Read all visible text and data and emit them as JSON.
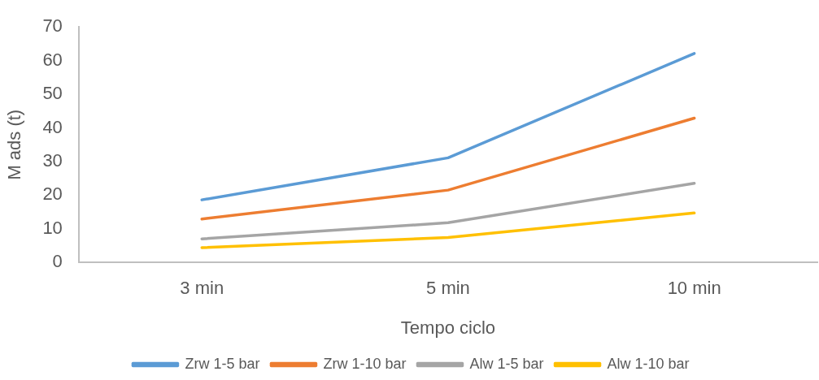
{
  "chart_data": {
    "type": "line",
    "xlabel": "Tempo ciclo",
    "ylabel": "M ads (t)",
    "categories": [
      "3 min",
      "5 min",
      "10 min"
    ],
    "series": [
      {
        "name": "Zrw 1-5 bar",
        "color": "#5b9bd5",
        "values": [
          18.6,
          31.1,
          62.1
        ]
      },
      {
        "name": "Zrw 1-10 bar",
        "color": "#ed7d31",
        "values": [
          12.9,
          21.5,
          42.9
        ]
      },
      {
        "name": "Alw 1-5 bar",
        "color": "#a5a5a5",
        "values": [
          7.0,
          11.8,
          23.5
        ]
      },
      {
        "name": "Alw 1-10 bar",
        "color": "#ffc000",
        "values": [
          4.4,
          7.4,
          14.7
        ]
      }
    ],
    "ylim": [
      0,
      70
    ],
    "yticks": [
      0,
      10,
      20,
      30,
      40,
      50,
      60,
      70
    ],
    "grid": false,
    "legend": "bottom"
  }
}
